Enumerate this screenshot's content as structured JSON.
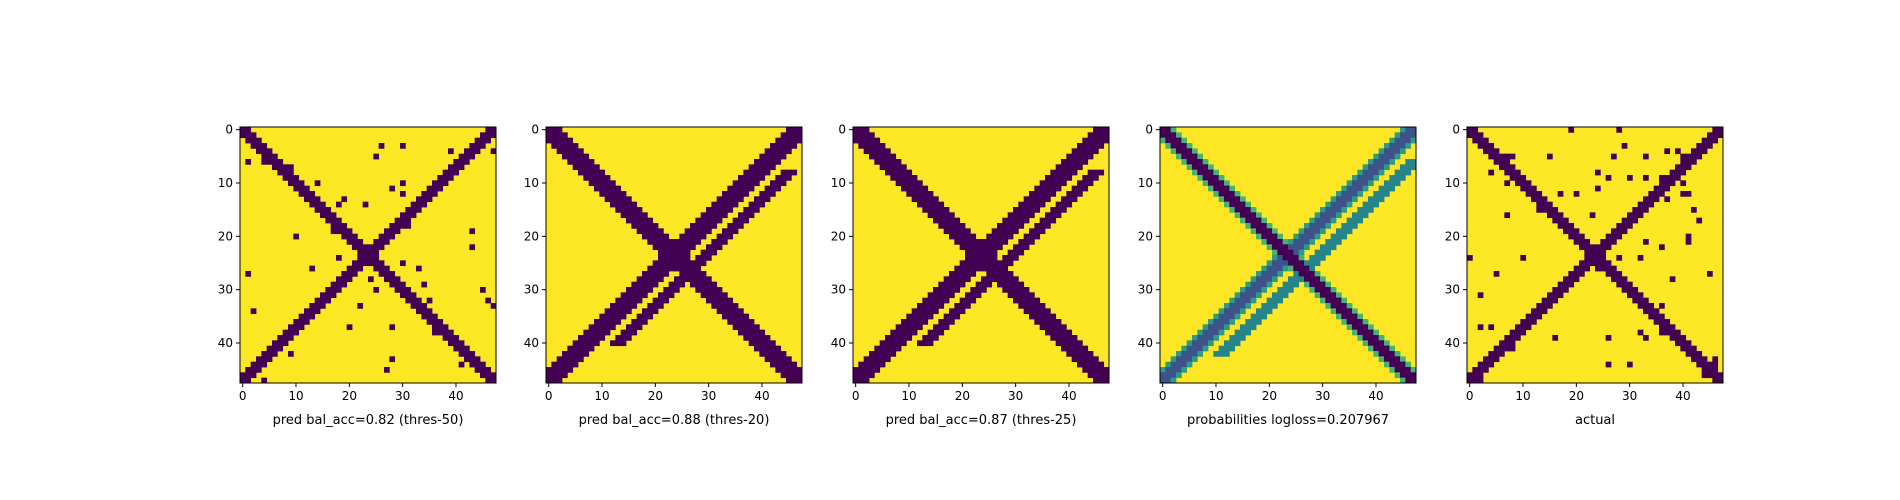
{
  "figure": {
    "cmap": "viridis",
    "colors": {
      "low": "#440154",
      "high": "#fde725"
    }
  },
  "chart_data": [
    {
      "type": "heatmap",
      "panel": "pred_50",
      "kind": "binary",
      "xlabel": "pred bal_acc=0.82 (thres-50)",
      "rows": 48,
      "cols": 48,
      "xlim": [
        0,
        47
      ],
      "ylim": [
        0,
        47
      ],
      "x_ticks": [
        0,
        10,
        20,
        30,
        40
      ],
      "y_ticks": [
        0,
        10,
        20,
        30,
        40
      ],
      "main_band_halfwidth": 1,
      "anti_band_halfwidth": 1,
      "anti_band_extent": [
        0,
        47
      ],
      "extra_parallel_halfwidth": 0,
      "extra_parallel_extent": [
        0,
        0
      ],
      "noise_level": 0.02
    },
    {
      "type": "heatmap",
      "panel": "pred_20",
      "kind": "binary",
      "xlabel": "pred bal_acc=0.88 (thres-20)",
      "rows": 48,
      "cols": 48,
      "xlim": [
        0,
        47
      ],
      "ylim": [
        0,
        47
      ],
      "x_ticks": [
        0,
        10,
        20,
        30,
        40
      ],
      "y_ticks": [
        0,
        10,
        20,
        30,
        40
      ],
      "main_band_halfwidth": 2,
      "anti_band_halfwidth": 2,
      "anti_band_extent": [
        0,
        47
      ],
      "extra_parallel_halfwidth": 1,
      "extra_parallel_extent": [
        8,
        40
      ],
      "noise_level": 0.0
    },
    {
      "type": "heatmap",
      "panel": "pred_25",
      "kind": "binary",
      "xlabel": "pred bal_acc=0.87 (thres-25)",
      "rows": 48,
      "cols": 48,
      "xlim": [
        0,
        47
      ],
      "ylim": [
        0,
        47
      ],
      "x_ticks": [
        0,
        10,
        20,
        30,
        40
      ],
      "y_ticks": [
        0,
        10,
        20,
        30,
        40
      ],
      "main_band_halfwidth": 2,
      "anti_band_halfwidth": 2,
      "anti_band_extent": [
        0,
        47
      ],
      "extra_parallel_halfwidth": 1,
      "extra_parallel_extent": [
        8,
        40
      ],
      "noise_level": 0.0
    },
    {
      "type": "heatmap",
      "panel": "probabilities",
      "kind": "continuous",
      "xlabel": "probabilities logloss=0.207967",
      "rows": 48,
      "cols": 48,
      "xlim": [
        0,
        47
      ],
      "ylim": [
        0,
        47
      ],
      "x_ticks": [
        0,
        10,
        20,
        30,
        40
      ],
      "y_ticks": [
        0,
        10,
        20,
        30,
        40
      ],
      "main_band_halfwidth": 1,
      "anti_band_halfwidth": 2,
      "anti_band_extent": [
        0,
        47
      ],
      "extra_parallel_halfwidth": 1,
      "extra_parallel_extent": [
        6,
        42
      ],
      "noise_level": 0.0
    },
    {
      "type": "heatmap",
      "panel": "actual",
      "kind": "binary",
      "xlabel": "actual",
      "rows": 48,
      "cols": 48,
      "xlim": [
        0,
        47
      ],
      "ylim": [
        0,
        47
      ],
      "x_ticks": [
        0,
        10,
        20,
        30,
        40
      ],
      "y_ticks": [
        0,
        10,
        20,
        30,
        40
      ],
      "main_band_halfwidth": 1,
      "anti_band_halfwidth": 1,
      "anti_band_extent": [
        0,
        47
      ],
      "extra_parallel_halfwidth": 0,
      "extra_parallel_extent": [
        0,
        0
      ],
      "noise_level": 0.035
    }
  ]
}
